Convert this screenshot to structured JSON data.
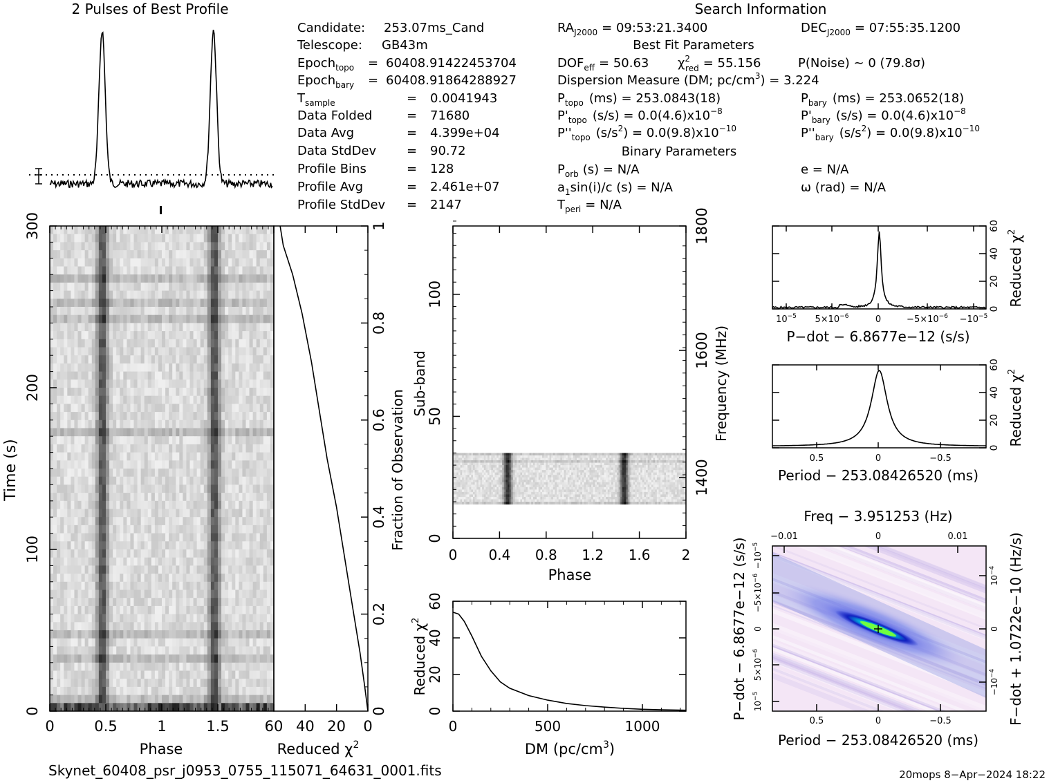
{
  "header": {
    "profile_title": "2 Pulses of Best Profile",
    "search_title": "Search Information",
    "best_fit_title": "Best Fit Parameters",
    "binary_title": "Binary Parameters"
  },
  "info_left": [
    {
      "label": "Candidate:",
      "sub": "",
      "eq": "",
      "value": "253.07ms_Cand"
    },
    {
      "label": "Telescope:",
      "sub": "",
      "eq": "",
      "value": "GB43m"
    },
    {
      "label": "Epoch",
      "sub": "topo",
      "eq": "=",
      "value": "60408.91422453704"
    },
    {
      "label": "Epoch",
      "sub": "bary",
      "eq": "=",
      "value": "60408.91864288927"
    },
    {
      "label": "T",
      "sub": "sample",
      "eq": "=",
      "value": "0.0041943"
    },
    {
      "label": "Data Folded",
      "sub": "",
      "eq": "=",
      "value": "71680"
    },
    {
      "label": "Data Avg",
      "sub": "",
      "eq": "=",
      "value": "4.399e+04"
    },
    {
      "label": "Data StdDev",
      "sub": "",
      "eq": "=",
      "value": "90.72"
    },
    {
      "label": "Profile Bins",
      "sub": "",
      "eq": "=",
      "value": "128"
    },
    {
      "label": "Profile Avg",
      "sub": "",
      "eq": "=",
      "value": "2.461e+07"
    },
    {
      "label": "Profile StdDev",
      "sub": "",
      "eq": "=",
      "value": "2147"
    }
  ],
  "info_right": {
    "ra_label": "RA",
    "ra_sub": "J2000",
    "ra_value": "= 09:53:21.3400",
    "dec_label": "DEC",
    "dec_sub": "J2000",
    "dec_value": "= 07:55:35.1200",
    "dof_label": "DOF",
    "dof_sub": "eff",
    "dof_value": "= 50.63",
    "chi_label": "χ",
    "chi_sup": "2",
    "chi_sub": "red",
    "chi_value": "= 55.156",
    "pnoise": "P(Noise) ~ 0    (79.8σ)",
    "dm_pre": "Dispersion Measure (DM; pc/cm",
    "dm_sup": "3",
    "dm_post": ") = 3.224",
    "ptopo_label": "P",
    "ptopo_sub": "topo",
    "ptopo_value": "(ms) =  253.0843(18)",
    "pbary_label": "P",
    "pbary_sub": "bary",
    "pbary_value": "(ms) =  253.0652(18)",
    "pdtopo_label": "P'",
    "pdtopo_sub": "topo",
    "pdtopo_value": "(s/s) = 0.0(4.6)x10",
    "pdtopo_exp": "−8",
    "pdbary_label": "P'",
    "pdbary_sub": "bary",
    "pdbary_value": "(s/s) = 0.0(4.6)x10",
    "pdbary_exp": "−8",
    "pddtopo_label": "P''",
    "pddtopo_sub": "topo",
    "pddtopo_value": "(s/s",
    "pddtopo_sup2": "2",
    "pddtopo_value2": ") = 0.0(9.8)x10",
    "pddtopo_exp": "−10",
    "pddbary_label": "P''",
    "pddbary_sub": "bary",
    "pddbary_value": "(s/s",
    "pddbary_sup2": "2",
    "pddbary_value2": ") = 0.0(9.8)x10",
    "pddbary_exp": "−10",
    "porb_label": "P",
    "porb_sub": "orb",
    "porb_value": "(s) = N/A",
    "ecc": "e = N/A",
    "a1_label": "a",
    "a1_sub": "1",
    "a1_value": "sin(i)/c (s) = N/A",
    "omega": "ω (rad) = N/A",
    "tperi_label": "T",
    "tperi_sub": "peri",
    "tperi_value": "= N/A"
  },
  "footer": {
    "filename": "Skynet_60408_psr_j0953_0755_115071_64631_0001.fits",
    "stamp": "20mops   8−Apr−2024 18:22"
  },
  "colors": {
    "background": "#ffffff",
    "ink": "#000000",
    "dm_map_high": "#00ffa0",
    "dm_map_mid": "#1020d0",
    "dm_map_low": "#f4e4f4"
  },
  "chart_data": [
    {
      "type": "line",
      "title": "2 Pulses of Best Profile",
      "x": "phase",
      "xlim": [
        0,
        2
      ],
      "pulse_phases": [
        0.47,
        1.47
      ],
      "baseline_relative": 0.06,
      "peak_relative": 1.0
    },
    {
      "type": "heatmap",
      "name": "time-phase",
      "xlabel": "Phase",
      "ylabel": "Time (s)",
      "xlim": [
        0,
        2
      ],
      "ylim": [
        0,
        300
      ],
      "xticks": [
        "0",
        "0.5",
        "1",
        "1.5"
      ],
      "yticks": [
        "0",
        "100",
        "200",
        "300"
      ],
      "pulse_phases": [
        0.47,
        1.47
      ]
    },
    {
      "type": "line",
      "name": "reduced-chi2-vs-fraction",
      "xlabel": "Reduced χ",
      "xlabel_sup": "2",
      "ylabel": "Fraction of Observation",
      "xlim": [
        60,
        0
      ],
      "ylim": [
        0,
        1
      ],
      "xticks": [
        "60",
        "40",
        "20",
        "0"
      ],
      "yticks": [
        "0.2",
        "0.4",
        "0.6",
        "0.8",
        "1"
      ],
      "points": [
        [
          0,
          0.0
        ],
        [
          2,
          0.05
        ],
        [
          5,
          0.12
        ],
        [
          10,
          0.22
        ],
        [
          15,
          0.32
        ],
        [
          20,
          0.42
        ],
        [
          26,
          0.52
        ],
        [
          31,
          0.62
        ],
        [
          36,
          0.72
        ],
        [
          42,
          0.82
        ],
        [
          48,
          0.9
        ],
        [
          54,
          0.96
        ],
        [
          56,
          1.0
        ]
      ]
    },
    {
      "type": "heatmap",
      "name": "subband-phase",
      "xlabel": "Phase",
      "ylabel": "Sub-band",
      "y2label": "Frequency (MHz)",
      "xlim": [
        0,
        2
      ],
      "ylim": [
        0,
        128
      ],
      "xticks": [
        "0",
        "0.4",
        "0.8",
        "1.2",
        "1.6",
        "2"
      ],
      "yticks": [
        "0",
        "50",
        "100"
      ],
      "y2ticks": [
        "1400",
        "1600",
        "1800"
      ],
      "active_subbands": [
        14,
        35
      ],
      "pulse_phases": [
        0.47,
        1.47
      ]
    },
    {
      "type": "line",
      "name": "dm-curve",
      "xlabel": "DM (pc/cm",
      "xlabel_sup": "3",
      "xlabel_post": ")",
      "ylabel": "Reduced χ",
      "ylabel_sup": "2",
      "xlim": [
        0,
        1230
      ],
      "ylim": [
        0,
        60
      ],
      "xticks": [
        "0",
        "500",
        "1000"
      ],
      "yticks": [
        "0",
        "20",
        "40",
        "60"
      ],
      "points": [
        [
          0,
          54
        ],
        [
          30,
          53
        ],
        [
          60,
          49
        ],
        [
          100,
          41
        ],
        [
          150,
          30
        ],
        [
          200,
          22
        ],
        [
          250,
          16
        ],
        [
          300,
          12.5
        ],
        [
          400,
          8.5
        ],
        [
          500,
          6
        ],
        [
          600,
          4.2
        ],
        [
          700,
          3
        ],
        [
          800,
          2.2
        ],
        [
          900,
          1.5
        ],
        [
          1000,
          1
        ],
        [
          1100,
          0.7
        ],
        [
          1230,
          0.5
        ]
      ]
    },
    {
      "type": "line",
      "name": "pdot-curve",
      "xlabel": "P−dot − 6.8677e−12 (s/s)",
      "ylabel": "Reduced χ",
      "ylabel_sup": "2",
      "xlim": [
        1.1e-05,
        -1.1e-05
      ],
      "ylim": [
        0,
        60
      ],
      "xticks": [
        "10",
        "5×10",
        "0",
        "−5×10",
        "−10"
      ],
      "xtick_exp": [
        "−5",
        "−6",
        "",
        "−6",
        "−5"
      ],
      "yticks": [
        "0",
        "20",
        "40",
        "60"
      ],
      "peak": 56,
      "baseline": 1
    },
    {
      "type": "line",
      "name": "period-curve",
      "xlabel": "Period − 253.08426520 (ms)",
      "ylabel": "Reduced χ",
      "ylabel_sup": "2",
      "xlim": [
        0.85,
        -0.85
      ],
      "ylim": [
        0,
        60
      ],
      "xticks": [
        "0.5",
        "0",
        "−0.5"
      ],
      "yticks": [
        "0",
        "20",
        "40",
        "60"
      ],
      "peak": 56,
      "baseline": 1
    },
    {
      "type": "heatmap",
      "name": "period-pdot-plane",
      "xlabel": "Period − 253.08426520 (ms)",
      "x2label": "Freq − 3.951253 (Hz)",
      "ylabel": "P−dot − 6.8677e−12 (s/s)",
      "y2label": "F−dot + 1.0722e−10 (Hz/s)",
      "xticks": [
        "0.5",
        "0",
        "−0.5"
      ],
      "x2ticks": [
        "−0.01",
        "0",
        "0.01"
      ],
      "yticks": [
        "10",
        "5×10",
        "0",
        "−5×10",
        "−10"
      ],
      "ytick_exp": [
        "−5",
        "−6",
        "",
        "−6",
        "−5"
      ],
      "y2ticks": [
        "−10",
        "0",
        "10"
      ],
      "y2tick_exp": [
        "−4",
        "",
        "−4"
      ]
    }
  ]
}
